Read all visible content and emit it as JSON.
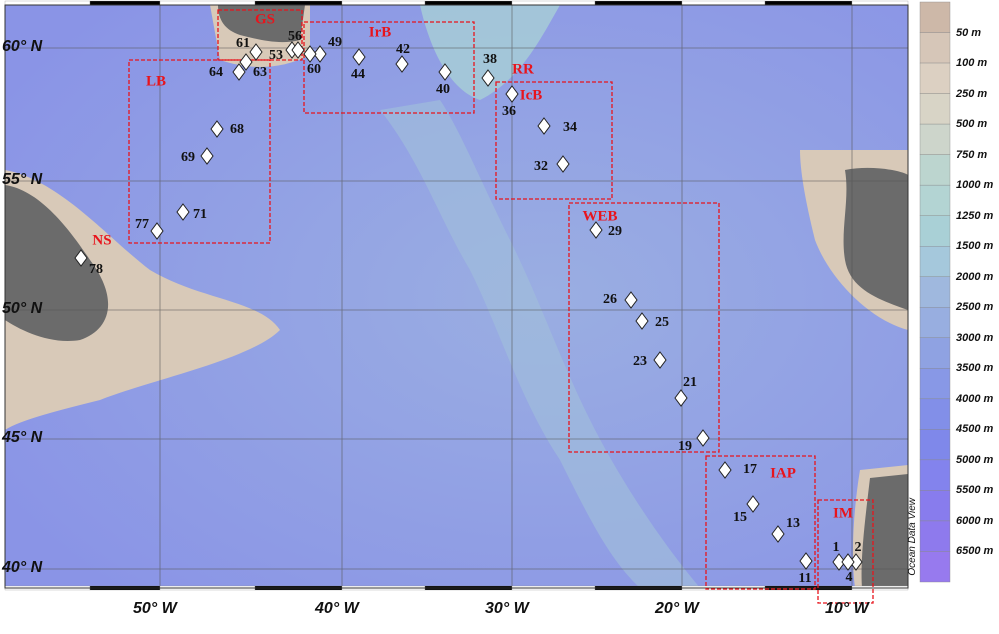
{
  "map": {
    "lat_labels": [
      "60° N",
      "55° N",
      "50° N",
      "45° N",
      "40° N"
    ],
    "lon_labels": [
      "50° W",
      "40° W",
      "30° W",
      "20° W",
      "10° W"
    ],
    "regions": [
      {
        "id": "GS",
        "label": "GS"
      },
      {
        "id": "IrB",
        "label": "IrB"
      },
      {
        "id": "LB",
        "label": "LB"
      },
      {
        "id": "RR",
        "label": "RR"
      },
      {
        "id": "IcB",
        "label": "IcB"
      },
      {
        "id": "WEB",
        "label": "WEB"
      },
      {
        "id": "IAP",
        "label": "IAP"
      },
      {
        "id": "IM",
        "label": "IM"
      },
      {
        "id": "NS",
        "label": "NS"
      }
    ],
    "stations": [
      "1",
      "2",
      "4",
      "11",
      "13",
      "15",
      "17",
      "19",
      "21",
      "23",
      "25",
      "26",
      "29",
      "32",
      "34",
      "36",
      "38",
      "40",
      "42",
      "44",
      "49",
      "53",
      "56",
      "60",
      "61",
      "63",
      "64",
      "68",
      "69",
      "71",
      "77",
      "78"
    ],
    "colors": {
      "region_box": "#e8141c",
      "land": "#6b6b6b",
      "deep": "#8a92e8",
      "shelf": "#d8c9b8"
    }
  },
  "legend": {
    "labels": [
      "50 m",
      "100 m",
      "250 m",
      "500 m",
      "750 m",
      "1000 m",
      "1250 m",
      "1500 m",
      "2000 m",
      "2500 m",
      "3000 m",
      "3500 m",
      "4000 m",
      "4500 m",
      "5000 m",
      "5500 m",
      "6000 m",
      "6500 m"
    ],
    "colors": [
      "#cdb8a8",
      "#d6c6b8",
      "#dcd0c2",
      "#d8d4c6",
      "#cdd5cb",
      "#bcd5cf",
      "#b3d4d3",
      "#a9d0d6",
      "#a5c8dc",
      "#9fb8de",
      "#98aee0",
      "#8fa2e2",
      "#8898e6",
      "#828fe8",
      "#7f88ea",
      "#8383ed",
      "#887ced",
      "#8e7aed",
      "#977aee"
    ],
    "watermark": "Ocean Data View"
  }
}
